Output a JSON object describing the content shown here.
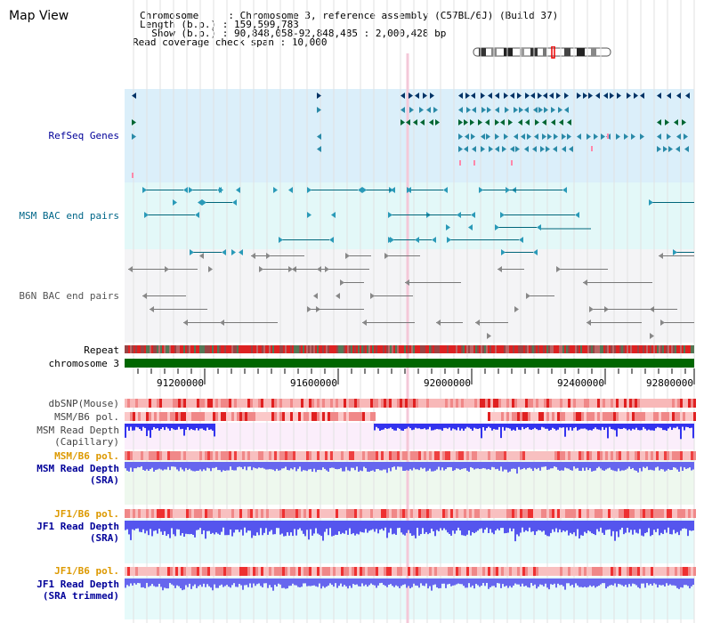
{
  "header": {
    "title": "Map View",
    "info_lines": [
      "Chromosome     : Chromosome 3, reference assembly (C57BL/6J) (Build 37)",
      "Length (b.p.) : 159,599,783",
      "  Show (b.p.) : 90,848,058-92,848,485 : 2,000,428 bp",
      "Read coverage check span : 10,000"
    ]
  },
  "tracks": {
    "refseq": "RefSeq Genes",
    "msm_bac": "MSM BAC end pairs",
    "b6n_bac": "B6N BAC end pairs",
    "repeat": "Repeat",
    "chromosome": "chromosome 3",
    "dbsnp": "dbSNP(Mouse)",
    "msm_b6_pol_1": "MSM/B6 pol.",
    "msm_depth_cap_1": "MSM Read Depth",
    "msm_depth_cap_2": "(Capillary)",
    "msm_b6_pol_2": "MSM/B6 pol.",
    "msm_depth_sra_1": "MSM Read Depth",
    "msm_depth_sra_2": "(SRA)",
    "jf1_b6_pol_1": "JF1/B6 pol.",
    "jf1_depth_sra_1": "JF1 Read Depth",
    "jf1_depth_sra_2": "(SRA)",
    "jf1_b6_pol_2": "JF1/B6 pol.",
    "jf1_depth_trim_1": "JF1 Read Depth",
    "jf1_depth_trim_2": "(SRA trimmed)"
  },
  "ruler": {
    "ticks": [
      "91200000",
      "91600000",
      "92000000",
      "92400000",
      "92800000"
    ]
  },
  "colors": {
    "refseq_bg": "#dbeffa",
    "msm_bac_bg": "#e3f8f8",
    "b6n_bac_bg": "#f4f4f6",
    "chromosome": "#006600",
    "label_blue": "#000099",
    "label_teal": "#006688",
    "label_orange": "#dd9900",
    "depth_blue": "#4444ee"
  }
}
